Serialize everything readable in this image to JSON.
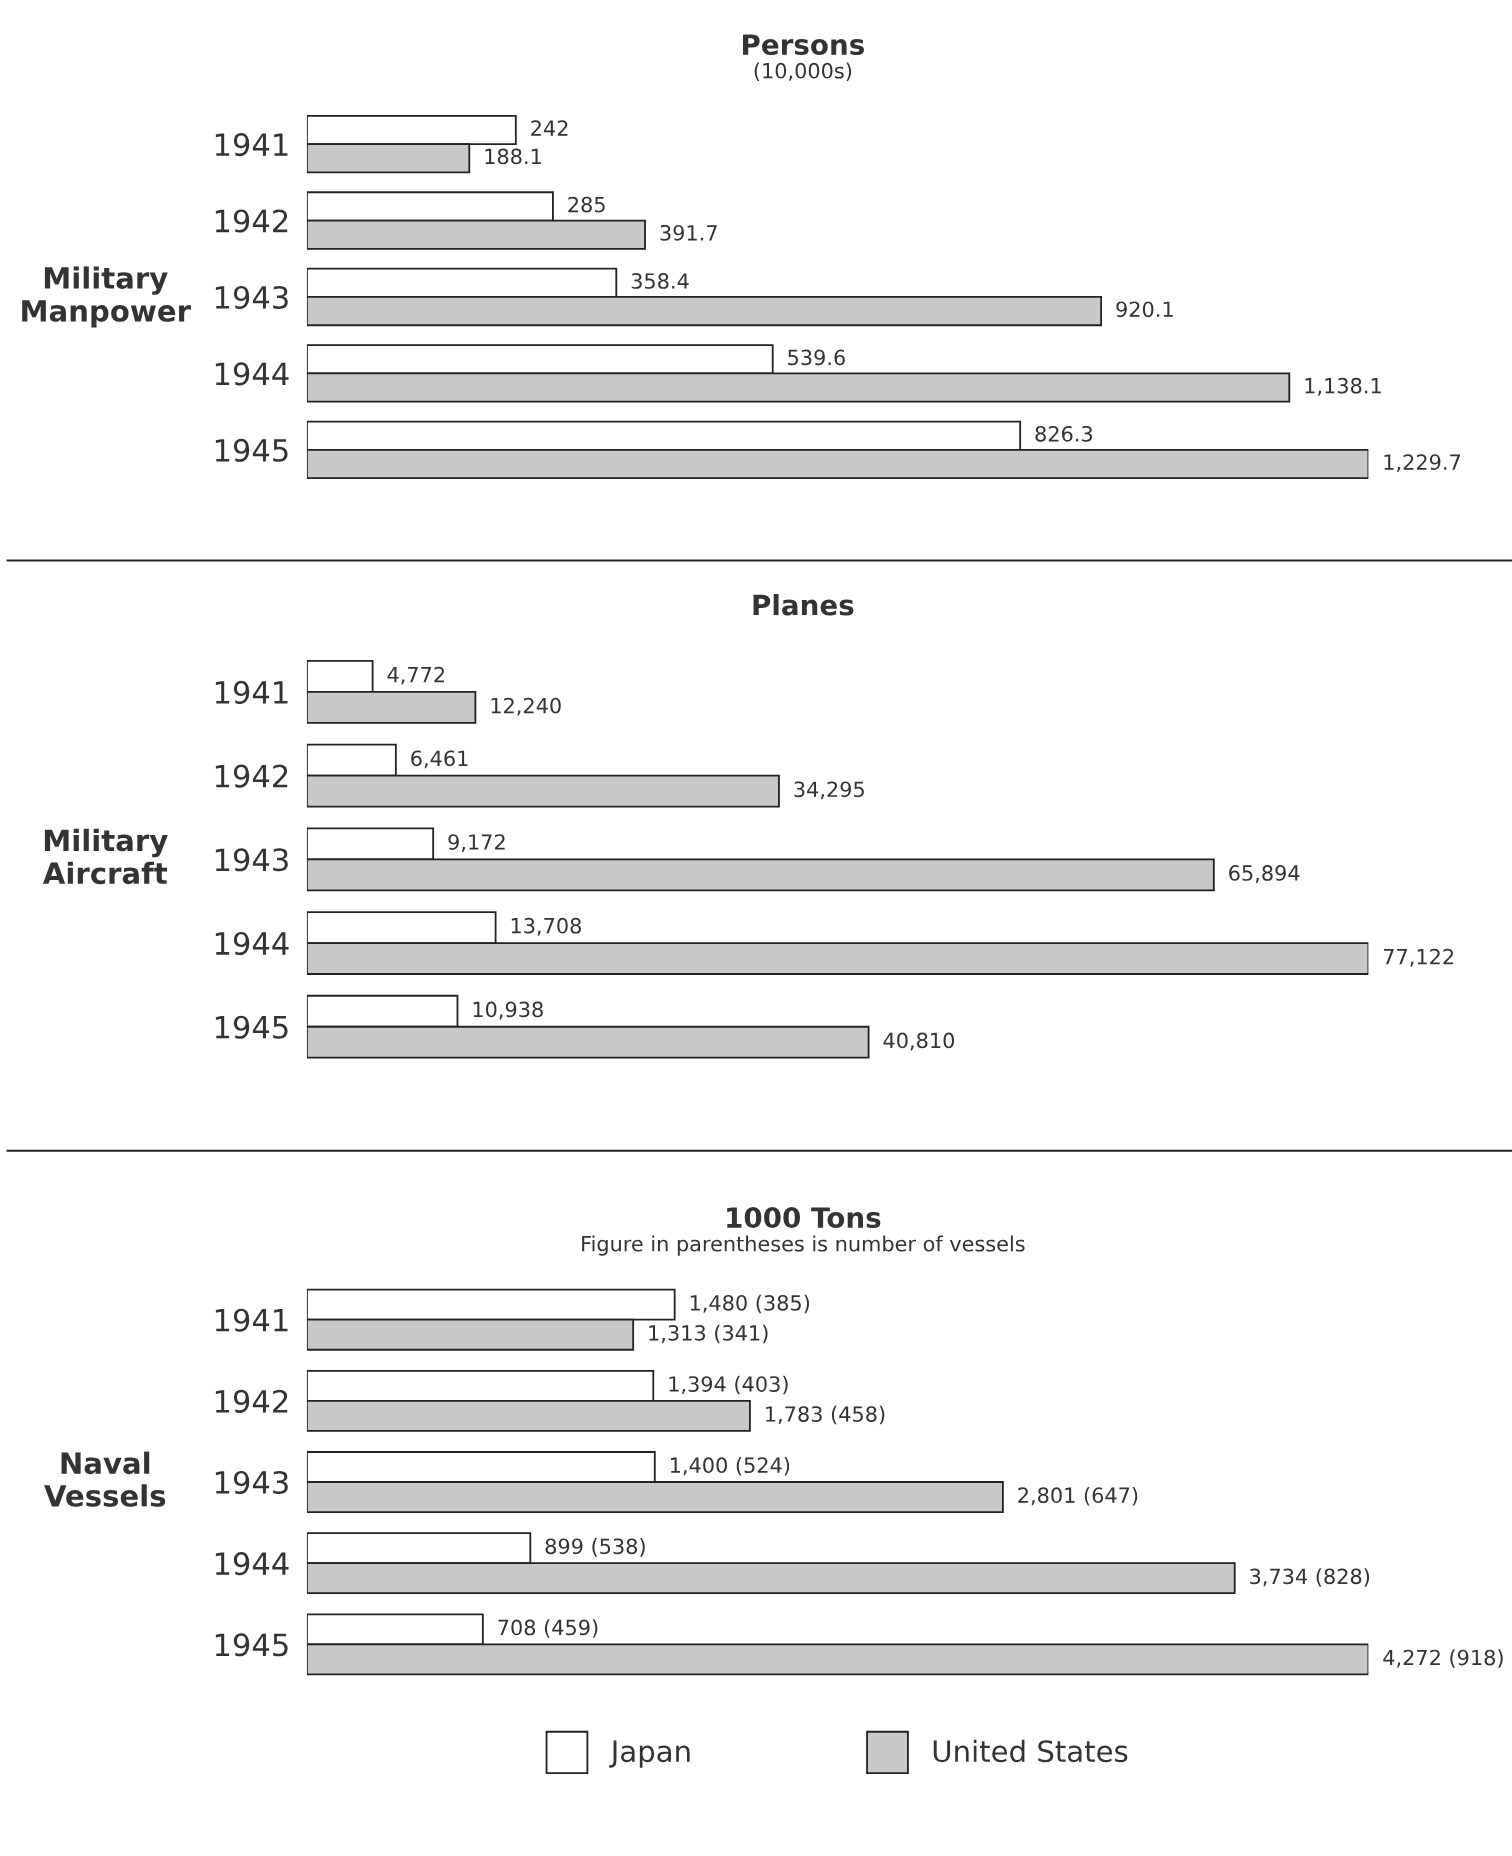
{
  "chart_data": [
    {
      "type": "bar",
      "orientation": "horizontal",
      "title": "Persons",
      "subtitle": "(10,000s)",
      "ylabel": "Military\nManpower",
      "categories": [
        "1941",
        "1942",
        "1943",
        "1944",
        "1945"
      ],
      "series": [
        {
          "color": "#ffffff",
          "values": [
            242,
            285,
            358.4,
            539.6,
            826.3
          ],
          "value_labels": [
            "242",
            "285",
            "358.4",
            "539.6",
            "826.3"
          ]
        },
        {
          "color": "#c8c8c8",
          "values": [
            188.1,
            391.7,
            920.1,
            1138.1,
            1229.7
          ],
          "value_labels": [
            "188.1",
            "391.7",
            "920.1",
            "1,138.1",
            "1,229.7"
          ]
        }
      ]
    },
    {
      "type": "bar",
      "orientation": "horizontal",
      "title": "Planes",
      "ylabel": "Military\nAircraft",
      "categories": [
        "1941",
        "1942",
        "1943",
        "1944",
        "1945"
      ],
      "series": [
        {
          "color": "#ffffff",
          "values": [
            4772,
            6461,
            9172,
            13708,
            10938
          ],
          "value_labels": [
            "4,772",
            "6,461",
            "9,172",
            "13,708",
            "10,938"
          ]
        },
        {
          "color": "#c8c8c8",
          "values": [
            12240,
            34295,
            65894,
            77122,
            40810
          ],
          "value_labels": [
            "12,240",
            "34,295",
            "65,894",
            "77,122",
            "40,810"
          ]
        }
      ]
    },
    {
      "type": "bar",
      "orientation": "horizontal",
      "title": "1000 Tons",
      "subtitle": "Figure in parentheses is number of vessels",
      "ylabel": "Naval\nVessels",
      "categories": [
        "1941",
        "1942",
        "1943",
        "1944",
        "1945"
      ],
      "legend": "bottom",
      "series": [
        {
          "name": "Japan",
          "color": "#ffffff",
          "values": [
            1480,
            1394,
            1400,
            899,
            708
          ],
          "value_labels": [
            "1,480 (385)",
            "1,394 (403)",
            "1,400 (524)",
            "899 (538)",
            "708 (459)"
          ]
        },
        {
          "name": "United States",
          "color": "#c8c8c8",
          "values": [
            1313,
            1783,
            2801,
            3734,
            4272
          ],
          "value_labels": [
            "1,313 (341)",
            "1,783 (458)",
            "2,801 (647)",
            "3,734 (828)",
            "4,272 (918)"
          ]
        }
      ]
    }
  ]
}
